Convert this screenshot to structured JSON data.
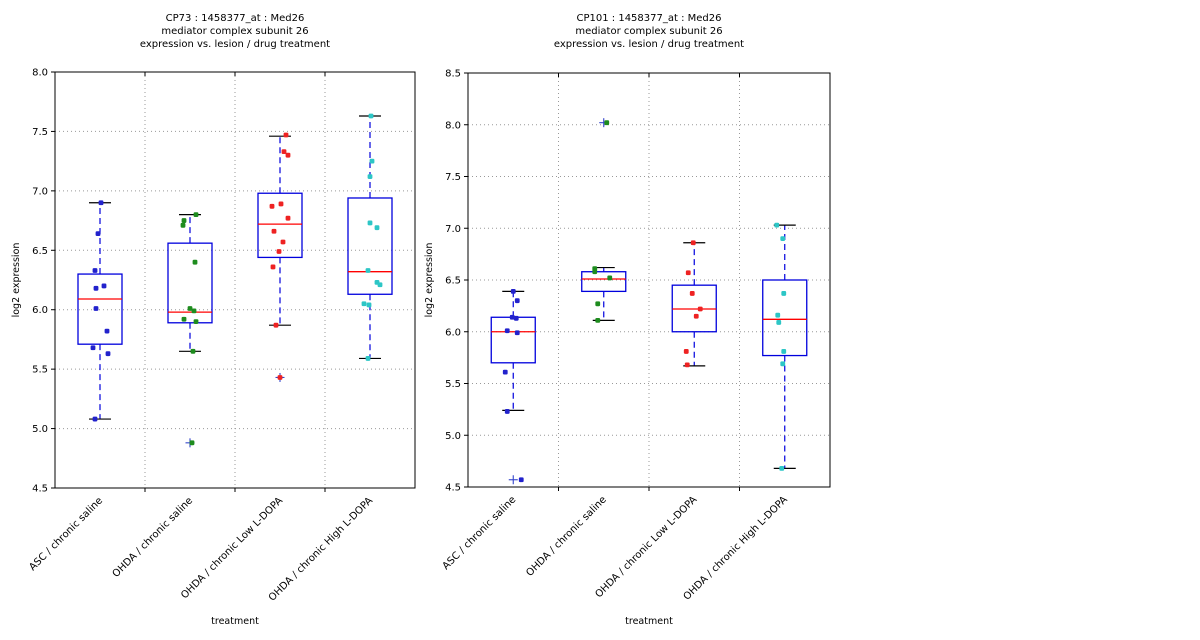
{
  "figure": {
    "background": "#ffffff"
  },
  "styles": {
    "frame_color": "#000000",
    "grid_color": "#999999",
    "box_color": "#0000dd",
    "median_color": "#ff0000",
    "whisker_color": "#0000dd",
    "cap_color": "#000000",
    "flier_color": "#3344cc",
    "title_color": "#000000"
  },
  "chart_data": [
    {
      "id": "CP73",
      "type": "boxplot-scatter",
      "title_lines": [
        "CP73 : 1458377_at : Med26",
        "mediator complex subunit 26",
        "expression vs. lesion / drug treatment"
      ],
      "xlabel": "treatment",
      "ylabel": "log2 expression",
      "ylim": [
        4.5,
        8.0
      ],
      "yticks": [
        4.5,
        5.0,
        5.5,
        6.0,
        6.5,
        7.0,
        7.5,
        8.0
      ],
      "grid": true,
      "categories": [
        "ASC / chronic saline",
        "OHDA / chronic saline",
        "OHDA / chronic Low L-DOPA",
        "OHDA / chronic High L-DOPA"
      ],
      "groups": [
        {
          "category": "ASC / chronic saline",
          "color": "#2222cc",
          "box": {
            "whisker_low": 5.08,
            "q1": 5.71,
            "median": 6.09,
            "q3": 6.3,
            "whisker_high": 6.9
          },
          "fliers": [],
          "points": [
            {
              "v": 6.9,
              "dx": 1
            },
            {
              "v": 6.64,
              "dx": -2
            },
            {
              "v": 6.33,
              "dx": -5
            },
            {
              "v": 6.2,
              "dx": 4
            },
            {
              "v": 6.18,
              "dx": -4
            },
            {
              "v": 6.01,
              "dx": -4
            },
            {
              "v": 5.82,
              "dx": 7
            },
            {
              "v": 5.68,
              "dx": -7
            },
            {
              "v": 5.63,
              "dx": 8
            },
            {
              "v": 5.08,
              "dx": -5
            }
          ]
        },
        {
          "category": "OHDA / chronic saline",
          "color": "#1e8c1e",
          "box": {
            "whisker_low": 5.65,
            "q1": 5.89,
            "median": 5.98,
            "q3": 6.56,
            "whisker_high": 6.8
          },
          "fliers": [
            4.88
          ],
          "points": [
            {
              "v": 6.8,
              "dx": 6
            },
            {
              "v": 6.75,
              "dx": -6
            },
            {
              "v": 6.71,
              "dx": -7
            },
            {
              "v": 6.4,
              "dx": 5
            },
            {
              "v": 6.01,
              "dx": 0
            },
            {
              "v": 5.99,
              "dx": 4
            },
            {
              "v": 5.92,
              "dx": -6
            },
            {
              "v": 5.9,
              "dx": 6
            },
            {
              "v": 5.65,
              "dx": 3
            },
            {
              "v": 4.88,
              "dx": 2
            }
          ]
        },
        {
          "category": "OHDA / chronic Low L-DOPA",
          "color": "#ee2222",
          "box": {
            "whisker_low": 5.87,
            "q1": 6.44,
            "median": 6.72,
            "q3": 6.98,
            "whisker_high": 7.46
          },
          "fliers": [
            5.43
          ],
          "points": [
            {
              "v": 7.47,
              "dx": 6
            },
            {
              "v": 7.33,
              "dx": 4
            },
            {
              "v": 7.3,
              "dx": 8
            },
            {
              "v": 6.89,
              "dx": 1
            },
            {
              "v": 6.87,
              "dx": -8
            },
            {
              "v": 6.77,
              "dx": 8
            },
            {
              "v": 6.66,
              "dx": -6
            },
            {
              "v": 6.57,
              "dx": 3
            },
            {
              "v": 6.49,
              "dx": -1
            },
            {
              "v": 6.36,
              "dx": -7
            },
            {
              "v": 5.87,
              "dx": -4
            },
            {
              "v": 5.43,
              "dx": 0
            }
          ]
        },
        {
          "category": "OHDA / chronic High L-DOPA",
          "color": "#2dc6c6",
          "box": {
            "whisker_low": 5.59,
            "q1": 6.13,
            "median": 6.32,
            "q3": 6.94,
            "whisker_high": 7.63
          },
          "fliers": [],
          "points": [
            {
              "v": 7.63,
              "dx": 1
            },
            {
              "v": 7.25,
              "dx": 2
            },
            {
              "v": 7.12,
              "dx": 0
            },
            {
              "v": 6.73,
              "dx": 0
            },
            {
              "v": 6.69,
              "dx": 7
            },
            {
              "v": 6.33,
              "dx": -2
            },
            {
              "v": 6.23,
              "dx": 7
            },
            {
              "v": 6.21,
              "dx": 10
            },
            {
              "v": 6.05,
              "dx": -6
            },
            {
              "v": 6.04,
              "dx": -1
            },
            {
              "v": 5.59,
              "dx": -2
            }
          ]
        }
      ]
    },
    {
      "id": "CP101",
      "type": "boxplot-scatter",
      "title_lines": [
        "CP101 : 1458377_at : Med26",
        "mediator complex subunit 26",
        "expression vs. lesion / drug treatment"
      ],
      "xlabel": "treatment",
      "ylabel": "log2 expression",
      "ylim": [
        4.5,
        8.5
      ],
      "yticks": [
        4.5,
        5.0,
        5.5,
        6.0,
        6.5,
        7.0,
        7.5,
        8.0,
        8.5
      ],
      "grid": true,
      "categories": [
        "ASC / chronic saline",
        "OHDA / chronic saline",
        "OHDA / chronic Low L-DOPA",
        "OHDA / chronic High L-DOPA"
      ],
      "groups": [
        {
          "category": "ASC / chronic saline",
          "color": "#2222cc",
          "box": {
            "whisker_low": 5.24,
            "q1": 5.7,
            "median": 6.0,
            "q3": 6.14,
            "whisker_high": 6.39
          },
          "fliers": [
            4.57
          ],
          "points": [
            {
              "v": 6.39,
              "dx": 0
            },
            {
              "v": 6.3,
              "dx": 4
            },
            {
              "v": 6.14,
              "dx": -1
            },
            {
              "v": 6.13,
              "dx": 3
            },
            {
              "v": 6.01,
              "dx": -6
            },
            {
              "v": 5.99,
              "dx": 4
            },
            {
              "v": 5.61,
              "dx": -8
            },
            {
              "v": 5.23,
              "dx": -6
            },
            {
              "v": 4.57,
              "dx": 8
            }
          ]
        },
        {
          "category": "OHDA / chronic saline",
          "color": "#1e8c1e",
          "box": {
            "whisker_low": 6.11,
            "q1": 6.39,
            "median": 6.51,
            "q3": 6.58,
            "whisker_high": 6.62
          },
          "fliers": [
            8.02
          ],
          "points": [
            {
              "v": 8.02,
              "dx": 3
            },
            {
              "v": 6.61,
              "dx": -9
            },
            {
              "v": 6.58,
              "dx": -9
            },
            {
              "v": 6.52,
              "dx": 6
            },
            {
              "v": 6.27,
              "dx": -6
            },
            {
              "v": 6.11,
              "dx": -6
            }
          ]
        },
        {
          "category": "OHDA / chronic Low L-DOPA",
          "color": "#ee2222",
          "box": {
            "whisker_low": 5.67,
            "q1": 6.0,
            "median": 6.22,
            "q3": 6.45,
            "whisker_high": 6.86
          },
          "fliers": [],
          "points": [
            {
              "v": 6.86,
              "dx": -1
            },
            {
              "v": 6.57,
              "dx": -6
            },
            {
              "v": 6.37,
              "dx": -2
            },
            {
              "v": 6.22,
              "dx": 6
            },
            {
              "v": 6.15,
              "dx": 2
            },
            {
              "v": 5.81,
              "dx": -8
            },
            {
              "v": 5.68,
              "dx": -7
            }
          ]
        },
        {
          "category": "OHDA / chronic High L-DOPA",
          "color": "#2dc6c6",
          "box": {
            "whisker_low": 4.68,
            "q1": 5.77,
            "median": 6.12,
            "q3": 6.5,
            "whisker_high": 7.03
          },
          "fliers": [],
          "points": [
            {
              "v": 7.03,
              "dx": -8
            },
            {
              "v": 6.9,
              "dx": -2
            },
            {
              "v": 6.37,
              "dx": -1
            },
            {
              "v": 6.16,
              "dx": -7
            },
            {
              "v": 6.09,
              "dx": -6
            },
            {
              "v": 5.81,
              "dx": -1
            },
            {
              "v": 5.69,
              "dx": -2
            },
            {
              "v": 4.68,
              "dx": -3
            }
          ]
        }
      ]
    }
  ]
}
